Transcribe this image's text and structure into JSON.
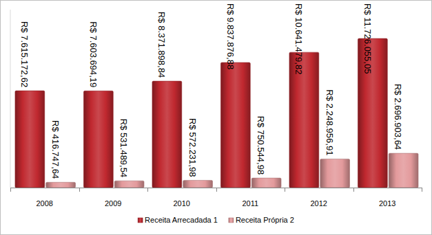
{
  "chart_data": {
    "type": "bar",
    "categories": [
      "2008",
      "2009",
      "2010",
      "2011",
      "2012",
      "2013"
    ],
    "series": [
      {
        "name": "Receita Arrecadada 1",
        "color": "#c0282f",
        "values": [
          7615172.62,
          7603694.19,
          8371898.84,
          9837876.88,
          10641479.82,
          11726055.05
        ],
        "value_labels": [
          "R$ 7.615.172,62",
          "R$ 7.603.694,19",
          "R$ 8.371.898,84",
          "R$ 9.837.876,88",
          "R$ 10.641.479,82",
          "R$ 11.726.055,05"
        ]
      },
      {
        "name": "Receita Própria 2",
        "color": "#e39a9c",
        "values": [
          416747.64,
          531489.54,
          572231.98,
          750544.98,
          2248956.91,
          2696903.64
        ],
        "value_labels": [
          "R$ 416.747,64",
          "R$ 531.489,54",
          "R$ 572.231,98",
          "R$ 750.544,98",
          "R$ 2.248.956,91",
          "R$ 2.696.903,64"
        ]
      }
    ],
    "ylim": [
      0,
      14000000
    ],
    "tick_labels": "x",
    "data_labels": true,
    "grid": false,
    "legend": "bottom"
  }
}
